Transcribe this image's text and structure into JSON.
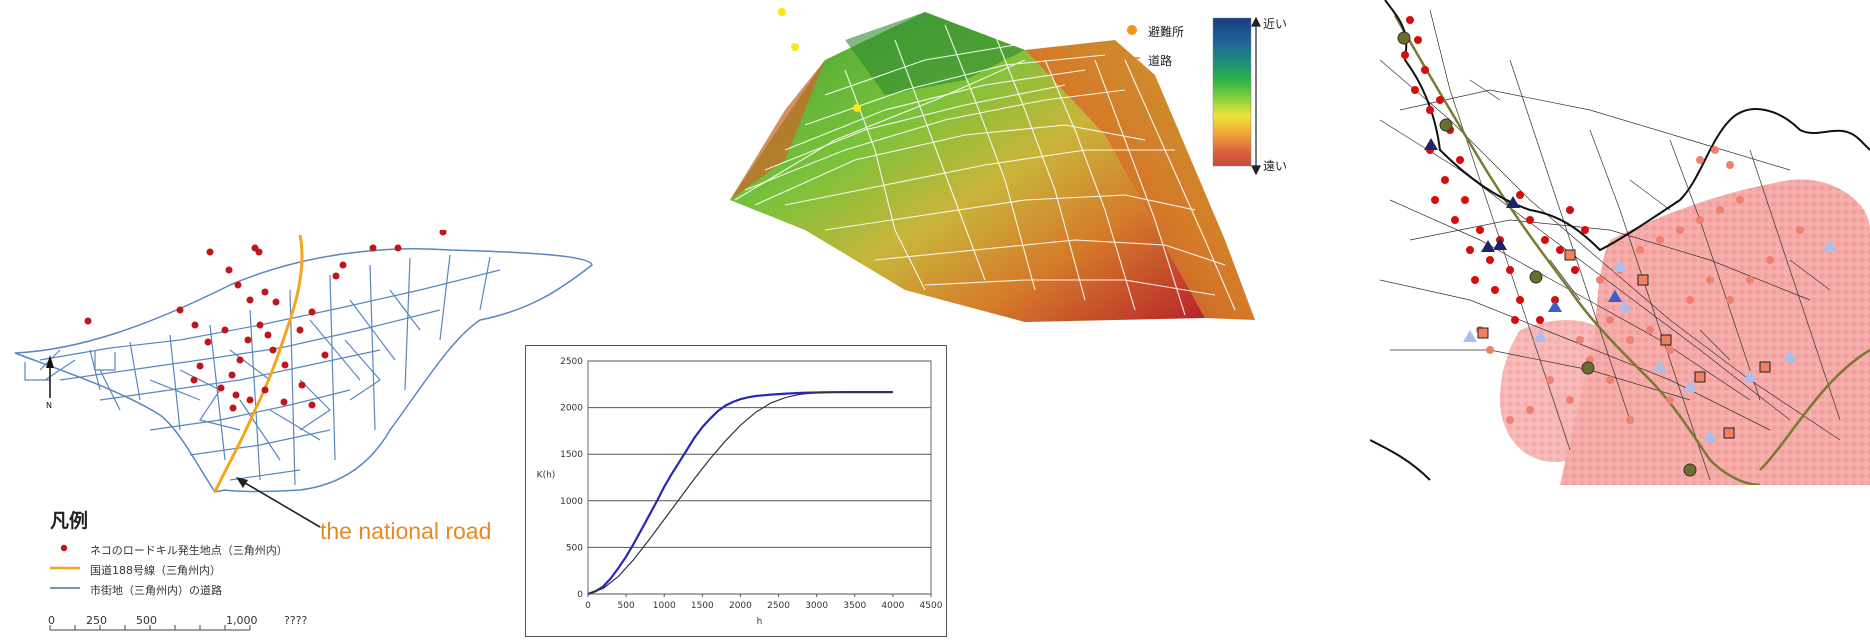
{
  "map_left": {
    "legend_title": "凡例",
    "legend_items": [
      {
        "label": "ネコのロードキル発生地点（三角州内）",
        "symbol": "red-dot",
        "color": "#c0161a"
      },
      {
        "label": "国道188号線（三角州内）",
        "symbol": "orange-line",
        "color": "#f2a51d"
      },
      {
        "label": "市街地（三角州内）の道路",
        "symbol": "blue-line",
        "color": "#5a86bf"
      }
    ],
    "scale_labels": [
      "0",
      "250",
      "500",
      "1,000",
      "????"
    ],
    "north_label": "N",
    "annotation": "the national road",
    "colors": {
      "roads": "#5a86bf",
      "national_road": "#f2a51d",
      "points": "#c0161a",
      "annotation": "#e8891f"
    }
  },
  "surface_3d": {
    "legend": [
      {
        "label": "避難所",
        "symbol": "orange-dot",
        "color": "#f2931d"
      },
      {
        "label": "道路",
        "symbol": "orange-line",
        "color": "#e07a2a"
      }
    ],
    "colorbar_near": "近い",
    "colorbar_far": "遠い",
    "colorbar_colors": [
      "#1a3d7c",
      "#1f5f99",
      "#1f7f8a",
      "#1a9a68",
      "#2bb24a",
      "#55c43c",
      "#8bd23a",
      "#c6dc3a",
      "#eee43a",
      "#f5c93a",
      "#f2a63a",
      "#e9833a",
      "#dc6540",
      "#c85040"
    ]
  },
  "chart_data": {
    "type": "line",
    "xlabel": "h",
    "ylabel": "K(h)",
    "xlim": [
      0,
      4500
    ],
    "ylim": [
      0,
      2500
    ],
    "xticks": [
      "0",
      "500",
      "1000",
      "1500",
      "2000",
      "2500",
      "3000",
      "3500",
      "4000",
      "4500"
    ],
    "yticks": [
      "0",
      "500",
      "1000",
      "1500",
      "2000",
      "2500"
    ],
    "grid": "horizontal",
    "series": [
      {
        "color": "#2828b4",
        "x": [
          0,
          100,
          200,
          300,
          400,
          500,
          600,
          700,
          800,
          900,
          1000,
          1100,
          1200,
          1300,
          1400,
          1500,
          1600,
          1700,
          1800,
          1900,
          2000,
          2100,
          2200,
          2400,
          2600,
          2800,
          3000,
          3200,
          3500,
          4000
        ],
        "y": [
          0,
          30,
          80,
          170,
          280,
          400,
          540,
          690,
          840,
          990,
          1150,
          1290,
          1420,
          1550,
          1680,
          1790,
          1880,
          1960,
          2020,
          2060,
          2090,
          2110,
          2125,
          2140,
          2150,
          2158,
          2162,
          2165,
          2166,
          2166
        ]
      },
      {
        "color": "#333333",
        "x": [
          0,
          200,
          400,
          600,
          800,
          1000,
          1200,
          1400,
          1600,
          1800,
          2000,
          2200,
          2400,
          2600,
          2800,
          3000,
          3200,
          3500,
          4000
        ],
        "y": [
          0,
          60,
          190,
          370,
          580,
          800,
          1020,
          1240,
          1450,
          1640,
          1810,
          1950,
          2050,
          2110,
          2145,
          2160,
          2165,
          2166,
          2166
        ]
      }
    ]
  },
  "map_right": {
    "colors": {
      "boundary": "#111111",
      "roads": "#333333",
      "route": "#6a6a2a",
      "dark_points": "#d40d0d",
      "light_points": "#f08070",
      "pink_area": "#f6b0b0",
      "dark_triangle": "#1a2466",
      "light_triangle": "#a9c0ee",
      "square": "#f08060",
      "station": "#6e6e2c"
    }
  }
}
